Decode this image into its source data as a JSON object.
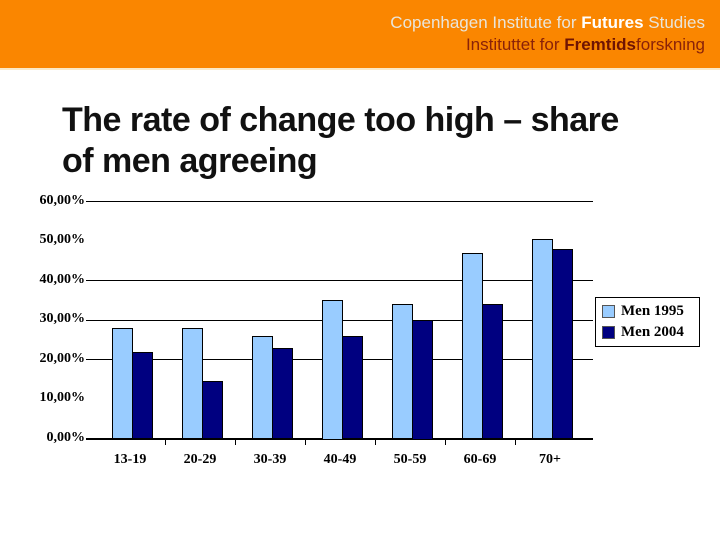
{
  "banner": {
    "line1_prefix": "Copenhagen Institute for ",
    "line1_bold": "Futures",
    "line1_suffix": " Studies",
    "line2_prefix": "Instituttet for ",
    "line2_bold": "Fremtids",
    "line2_suffix": "forskning",
    "bg_color": "#fa8600"
  },
  "title": {
    "line1": "The rate of change too high – share",
    "line2": "of men agreeing"
  },
  "chart_data": {
    "type": "bar",
    "title": "The rate of change too high – share of men agreeing",
    "categories": [
      "13-19",
      "20-29",
      "30-39",
      "40-49",
      "50-59",
      "60-69",
      "70+"
    ],
    "series": [
      {
        "name": "Men 1995",
        "color": "#99ccff",
        "values": [
          28,
          28,
          26,
          35,
          34,
          47,
          50.5
        ]
      },
      {
        "name": "Men 2004",
        "color": "#000080",
        "values": [
          22,
          14.5,
          23,
          26,
          30,
          34,
          48
        ]
      }
    ],
    "xlabel": "",
    "ylabel": "",
    "ylim": [
      0,
      60
    ],
    "y_ticks": [
      {
        "value": 0,
        "label": "0,00%"
      },
      {
        "value": 10,
        "label": "10,00%"
      },
      {
        "value": 20,
        "label": "20,00%"
      },
      {
        "value": 30,
        "label": "30,00%"
      },
      {
        "value": 40,
        "label": "40,00%"
      },
      {
        "value": 50,
        "label": "50,00%"
      },
      {
        "value": 60,
        "label": "60,00%"
      }
    ],
    "visible_gridline_values": [
      20,
      30,
      40,
      60
    ],
    "grid": "horizontal",
    "legend_position": "right",
    "legend": [
      "Men 1995",
      "Men 2004"
    ],
    "bar_border_color": "#000000"
  }
}
